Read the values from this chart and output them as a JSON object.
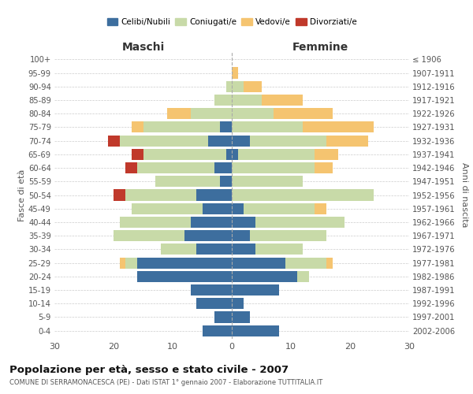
{
  "age_groups": [
    "0-4",
    "5-9",
    "10-14",
    "15-19",
    "20-24",
    "25-29",
    "30-34",
    "35-39",
    "40-44",
    "45-49",
    "50-54",
    "55-59",
    "60-64",
    "65-69",
    "70-74",
    "75-79",
    "80-84",
    "85-89",
    "90-94",
    "95-99",
    "100+"
  ],
  "birth_years": [
    "2002-2006",
    "1997-2001",
    "1992-1996",
    "1987-1991",
    "1982-1986",
    "1977-1981",
    "1972-1976",
    "1967-1971",
    "1962-1966",
    "1957-1961",
    "1952-1956",
    "1947-1951",
    "1942-1946",
    "1937-1941",
    "1932-1936",
    "1927-1931",
    "1922-1926",
    "1917-1921",
    "1912-1916",
    "1907-1911",
    "≤ 1906"
  ],
  "maschi": {
    "celibi": [
      5,
      3,
      6,
      7,
      16,
      16,
      6,
      8,
      7,
      5,
      6,
      2,
      3,
      1,
      4,
      2,
      0,
      0,
      0,
      0,
      0
    ],
    "coniugati": [
      0,
      0,
      0,
      0,
      0,
      2,
      6,
      12,
      12,
      12,
      12,
      11,
      13,
      14,
      15,
      13,
      7,
      3,
      1,
      0,
      0
    ],
    "vedovi": [
      0,
      0,
      0,
      0,
      0,
      1,
      0,
      0,
      0,
      0,
      0,
      0,
      0,
      0,
      0,
      2,
      4,
      0,
      0,
      0,
      0
    ],
    "divorziati": [
      0,
      0,
      0,
      0,
      0,
      0,
      0,
      0,
      0,
      0,
      2,
      0,
      2,
      2,
      2,
      0,
      0,
      0,
      0,
      0,
      0
    ]
  },
  "femmine": {
    "nubili": [
      8,
      3,
      2,
      8,
      11,
      9,
      4,
      3,
      4,
      2,
      0,
      0,
      0,
      1,
      3,
      0,
      0,
      0,
      0,
      0,
      0
    ],
    "coniugate": [
      0,
      0,
      0,
      0,
      2,
      7,
      8,
      13,
      15,
      12,
      24,
      12,
      14,
      13,
      13,
      12,
      7,
      5,
      2,
      0,
      0
    ],
    "vedove": [
      0,
      0,
      0,
      0,
      0,
      1,
      0,
      0,
      0,
      2,
      0,
      0,
      3,
      4,
      7,
      12,
      10,
      7,
      3,
      1,
      0
    ],
    "divorziate": [
      0,
      0,
      0,
      0,
      0,
      0,
      0,
      0,
      0,
      0,
      0,
      0,
      0,
      0,
      0,
      0,
      0,
      0,
      0,
      0,
      0
    ]
  },
  "colors": {
    "celibi": "#3d6e9e",
    "coniugati": "#c8daa8",
    "vedovi": "#f5c470",
    "divorziati": "#c0392b"
  },
  "xlim": 30,
  "title": "Popolazione per età, sesso e stato civile - 2007",
  "subtitle": "COMUNE DI SERRAMONACESCA (PE) - Dati ISTAT 1° gennaio 2007 - Elaborazione TUTTITALIA.IT",
  "ylabel_left": "Fasce di età",
  "ylabel_right": "Anni di nascita",
  "xlabel_left": "Maschi",
  "xlabel_right": "Femmine"
}
